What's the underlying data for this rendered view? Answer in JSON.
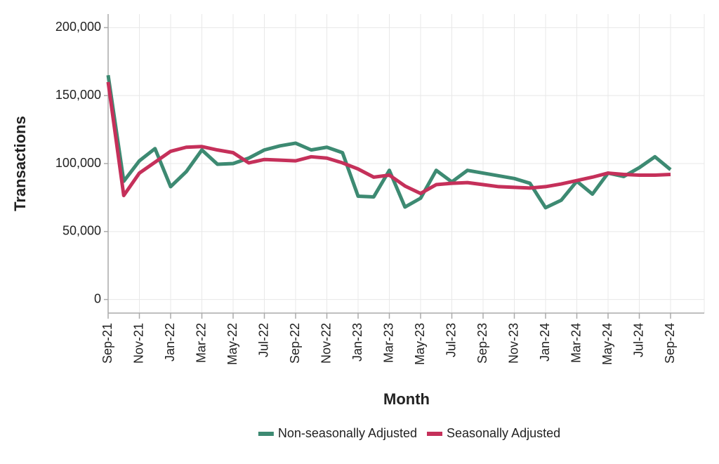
{
  "chart_data": {
    "type": "line",
    "x_label": "Month",
    "y_label": "Transactions",
    "categories": [
      "Sep-21",
      null,
      "Nov-21",
      null,
      "Jan-22",
      null,
      "Mar-22",
      null,
      "May-22",
      null,
      "Jul-22",
      null,
      "Sep-22",
      null,
      "Nov-22",
      null,
      "Jan-23",
      null,
      "Mar-23",
      null,
      "May-23",
      null,
      "Jul-23",
      null,
      "Sep-23",
      null,
      "Nov-23",
      null,
      "Jan-24",
      null,
      "Mar-24",
      null,
      "May-24",
      null,
      "Jul-24",
      null,
      "Sep-24"
    ],
    "series": [
      {
        "name": "Non-seasonally Adjusted",
        "color": "#3d8a72",
        "values": [
          165000,
          87000,
          102000,
          111000,
          83000,
          94000,
          110000,
          99500,
          100000,
          104000,
          110000,
          113000,
          115000,
          110000,
          112000,
          108000,
          76000,
          75500,
          95000,
          68000,
          74500,
          95000,
          86500,
          95000,
          93000,
          91000,
          89000,
          85500,
          67500,
          73000,
          87000,
          77500,
          93000,
          90500,
          97000,
          105000,
          95500
        ]
      },
      {
        "name": "Seasonally Adjusted",
        "color": "#c5305a",
        "values": [
          160000,
          76500,
          93000,
          101000,
          109000,
          112000,
          112500,
          110000,
          108000,
          100500,
          103000,
          102500,
          102000,
          105000,
          104000,
          100500,
          96000,
          90000,
          91500,
          83500,
          78000,
          84500,
          85500,
          86000,
          84500,
          83000,
          82500,
          82000,
          83000,
          85000,
          87500,
          90000,
          93000,
          92000,
          91500,
          91500,
          92000
        ]
      }
    ],
    "ylim": [
      -10000,
      210000
    ],
    "yticks": [
      0,
      {
        "value": 50000,
        "label": "50,000"
      },
      {
        "value": 100000,
        "label": "100,000"
      },
      {
        "value": 150000,
        "label": "150,000"
      },
      {
        "value": 200000,
        "label": "200,000"
      }
    ],
    "grid": true,
    "legend": "bottom"
  }
}
